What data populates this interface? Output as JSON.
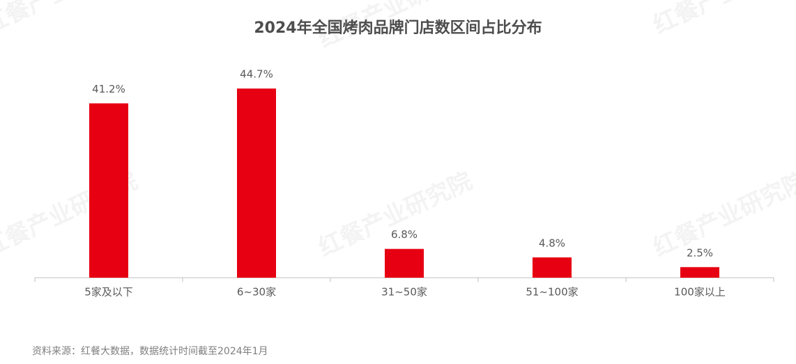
{
  "chart_data": {
    "type": "bar",
    "title": "2024年全国烤肉品牌门店数区间占比分布",
    "categories": [
      "5家及以下",
      "6~30家",
      "31~50家",
      "51~100家",
      "100家以上"
    ],
    "values": [
      41.2,
      44.7,
      6.8,
      4.8,
      2.5
    ],
    "value_labels": [
      "41.2%",
      "44.7%",
      "6.8%",
      "4.8%",
      "2.5%"
    ],
    "color": "#e60012",
    "ylim": [
      0,
      50
    ],
    "grid": false,
    "source": "资料来源：红餐大数据，数据统计时间截至2024年1月",
    "watermark": "红餐产业研究院"
  }
}
